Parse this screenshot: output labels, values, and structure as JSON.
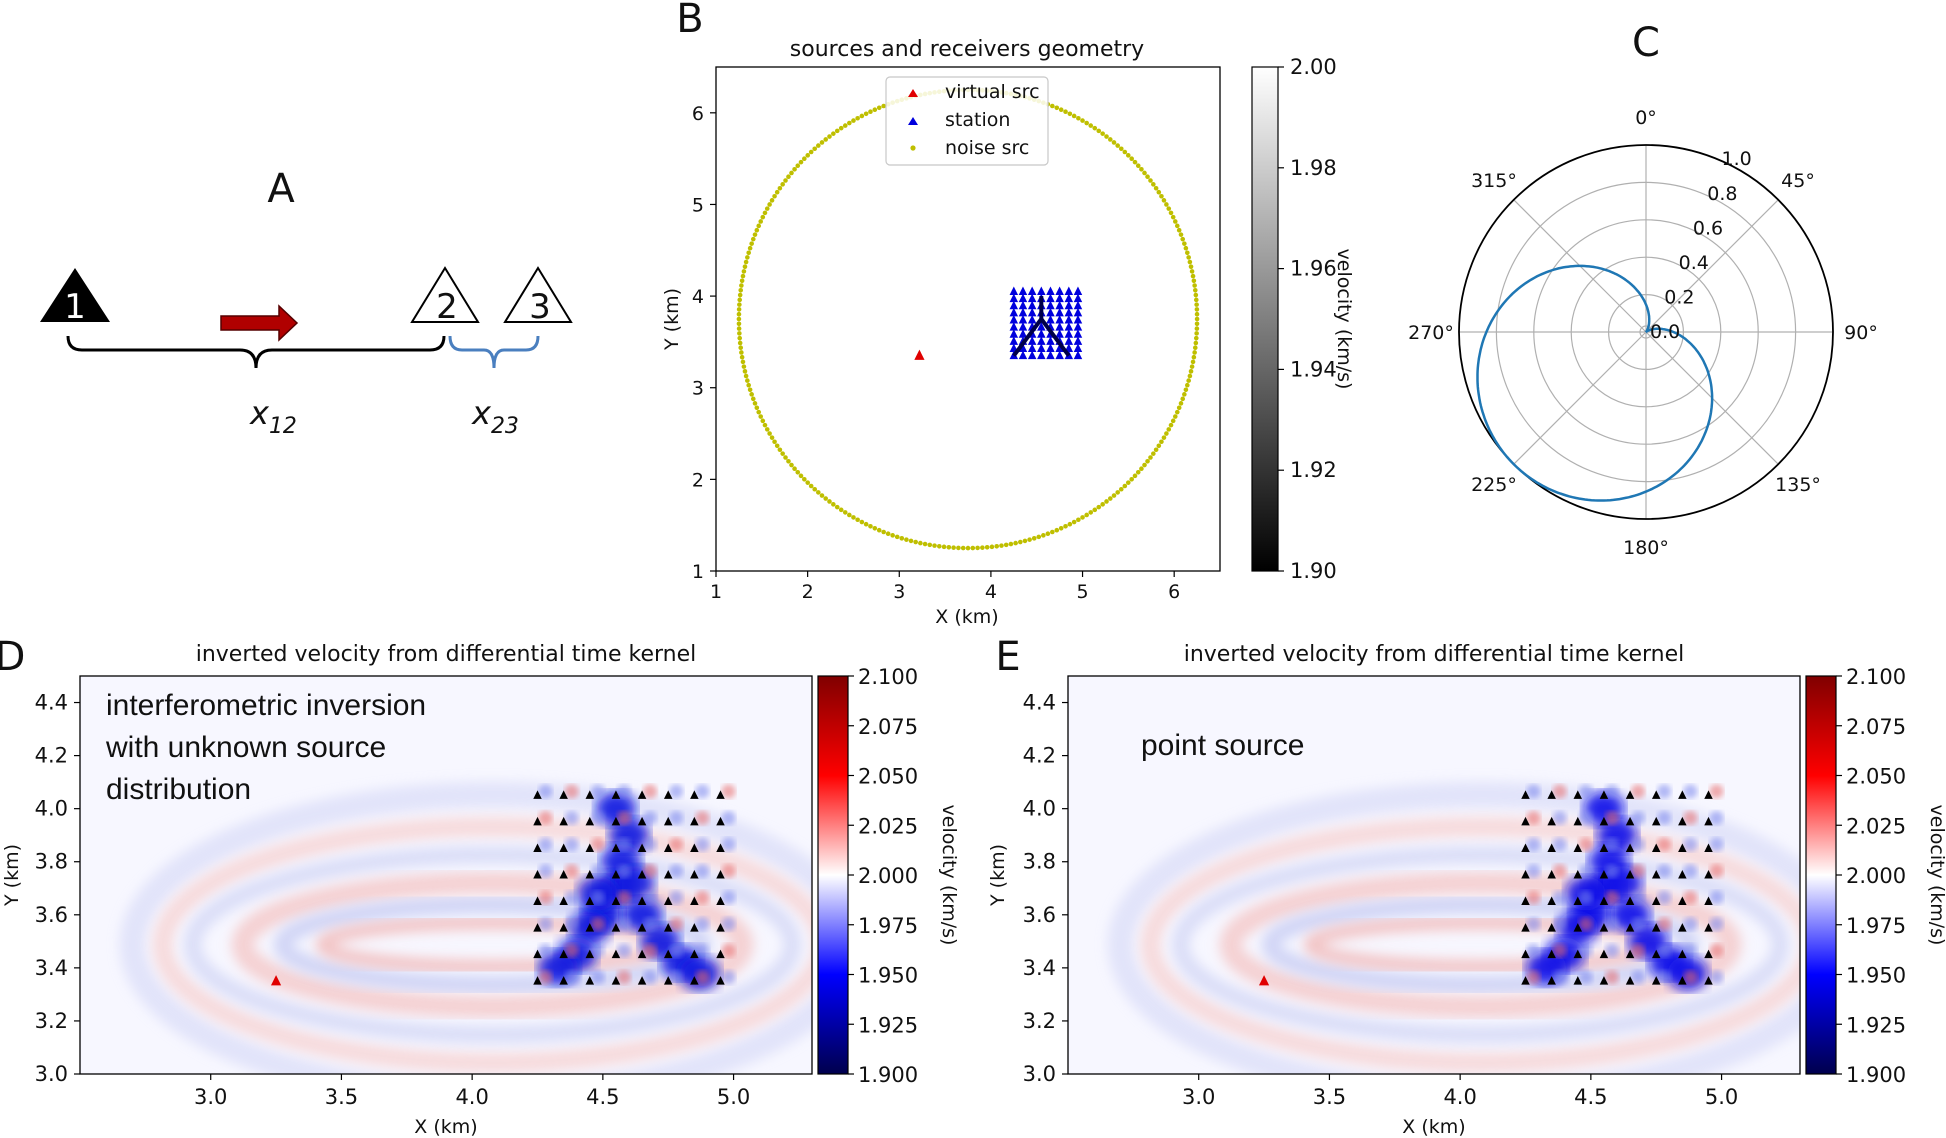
{
  "panel_labels": {
    "a": "A",
    "b": "B",
    "c": "C",
    "d": "D",
    "e": "E"
  },
  "panel_a": {
    "receivers": [
      "1",
      "2",
      "3"
    ],
    "distance_labels": [
      "x12",
      "x23"
    ],
    "distance_main": [
      "x",
      "x"
    ],
    "distance_sub": [
      "12",
      "23"
    ],
    "colors": {
      "receiver1": "#000000",
      "arrow": "#b00000",
      "brace_main": "#000000",
      "brace_second": "#4a7fbf"
    }
  },
  "chart_data": [
    {
      "id": "B",
      "type": "scatter",
      "title": "sources and receivers geometry",
      "xlabel": "X (km)",
      "ylabel": "Y (km)",
      "xlim": [
        1,
        6.5
      ],
      "ylim": [
        1,
        6.5
      ],
      "xticks": [
        1,
        2,
        3,
        4,
        5,
        6
      ],
      "yticks": [
        1,
        2,
        3,
        4,
        5,
        6
      ],
      "legend": [
        "virtual src",
        "station",
        "noise src"
      ],
      "legend_position": "upper-center",
      "virtual_src": {
        "x": 3.22,
        "y": 3.35,
        "color": "#e00000"
      },
      "stations": {
        "x_range": [
          4.25,
          4.95
        ],
        "y_range": [
          3.35,
          4.05
        ],
        "nx": 8,
        "ny": 10,
        "color": "#0000dd"
      },
      "highlight_paths": [
        [
          [
            4.25,
            3.35
          ],
          [
            4.55,
            3.75
          ],
          [
            4.85,
            3.35
          ]
        ],
        [
          [
            4.55,
            3.75
          ],
          [
            4.55,
            4.0
          ]
        ]
      ],
      "noise_src": {
        "center": [
          3.75,
          3.75
        ],
        "radius": 2.5,
        "count": 300,
        "color": "#bfbf00"
      },
      "colorbar": {
        "label": "velocity (km/s)",
        "min": 1.9,
        "max": 2.0,
        "ticks": [
          "2.00",
          "1.98",
          "1.96",
          "1.94",
          "1.92",
          "1.90"
        ],
        "cmap": "gray"
      }
    },
    {
      "id": "C",
      "type": "polar",
      "angle_labels": [
        "0°",
        "45°",
        "90°",
        "135°",
        "180°",
        "225°",
        "270°",
        "315°"
      ],
      "radial_ticks": [
        "0.0",
        "0.2",
        "0.4",
        "0.6",
        "0.8",
        "1.0"
      ],
      "rmax": 1.0,
      "curve": {
        "color": "#1f77b4",
        "peak_direction_deg": 225,
        "peak_value": 1.0,
        "formula": "r = (1 + cos(theta - 225deg)) / 2"
      }
    },
    {
      "id": "D",
      "type": "heatmap",
      "title": "inverted velocity from differential time kernel",
      "annotation": [
        "interferometric inversion",
        "with unknown source",
        "distribution"
      ],
      "xlabel": "X (km)",
      "ylabel": "Y (km)",
      "xlim": [
        2.5,
        5.3
      ],
      "ylim": [
        3.0,
        4.5
      ],
      "xticks": [
        "3.0",
        "3.5",
        "4.0",
        "4.5",
        "5.0"
      ],
      "yticks": [
        "3.0",
        "3.2",
        "3.4",
        "3.6",
        "3.8",
        "4.0",
        "4.2",
        "4.4"
      ],
      "virtual_src": {
        "x": 3.25,
        "y": 3.35
      },
      "stations": {
        "x_range": [
          4.25,
          4.95
        ],
        "y_range": [
          3.35,
          4.05
        ],
        "nx": 8,
        "ny": 8
      },
      "colorbar": {
        "label": "velocity (km/s)",
        "min": 1.9,
        "max": 2.1,
        "ticks": [
          "2.100",
          "2.075",
          "2.050",
          "2.025",
          "2.000",
          "1.975",
          "1.950",
          "1.925",
          "1.900"
        ],
        "cmap": "seismic"
      }
    },
    {
      "id": "E",
      "type": "heatmap",
      "title": "inverted velocity from differential time kernel",
      "annotation": [
        "point source"
      ],
      "xlabel": "X (km)",
      "ylabel": "Y (km)",
      "xlim": [
        2.5,
        5.3
      ],
      "ylim": [
        3.0,
        4.5
      ],
      "xticks": [
        "3.0",
        "3.5",
        "4.0",
        "4.5",
        "5.0"
      ],
      "yticks": [
        "3.0",
        "3.2",
        "3.4",
        "3.6",
        "3.8",
        "4.0",
        "4.2",
        "4.4"
      ],
      "virtual_src": {
        "x": 3.25,
        "y": 3.35
      },
      "stations": {
        "x_range": [
          4.25,
          4.95
        ],
        "y_range": [
          3.35,
          4.05
        ],
        "nx": 8,
        "ny": 8
      },
      "colorbar": {
        "label": "velocity (km/s)",
        "min": 1.9,
        "max": 2.1,
        "ticks": [
          "2.100",
          "2.075",
          "2.050",
          "2.025",
          "2.000",
          "1.975",
          "1.950",
          "1.925",
          "1.900"
        ],
        "cmap": "seismic"
      }
    }
  ]
}
